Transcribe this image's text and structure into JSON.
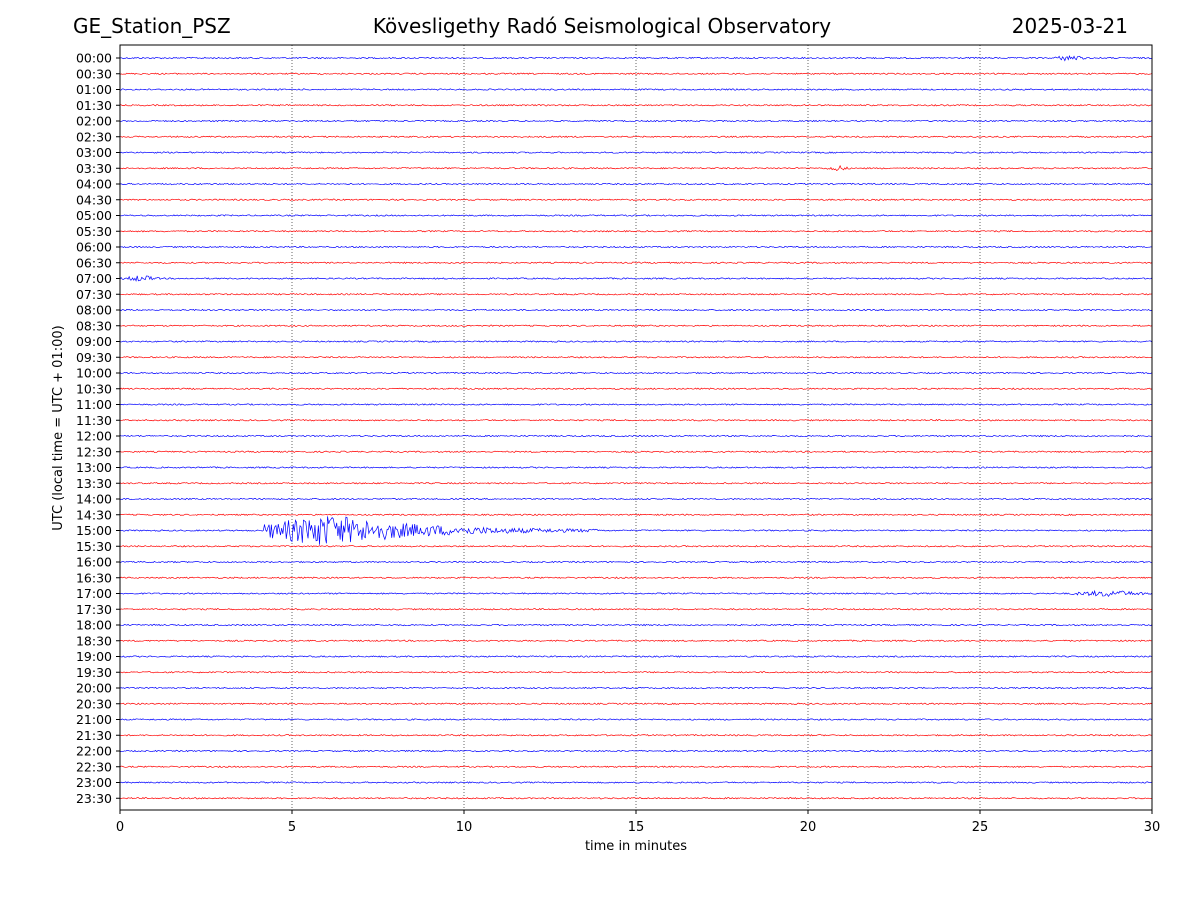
{
  "header": {
    "station": "GE_Station_PSZ",
    "observatory": "Kövesligethy Radó Seismological Observatory",
    "date": "2025-03-21"
  },
  "chart_data": {
    "type": "line",
    "title": "Kövesligethy Radó Seismological Observatory",
    "xlabel": "time in minutes",
    "ylabel": "UTC (local time = UTC + 01:00)",
    "xlim": [
      0,
      30
    ],
    "xticks": [
      0,
      5,
      10,
      15,
      20,
      25,
      30
    ],
    "grid": "vertical dotted lines at x ticks",
    "colors": {
      "even_rows": "#0000ff",
      "odd_rows": "#ff0000"
    },
    "rows": [
      "00:00",
      "00:30",
      "01:00",
      "01:30",
      "02:00",
      "02:30",
      "03:00",
      "03:30",
      "04:00",
      "04:30",
      "05:00",
      "05:30",
      "06:00",
      "06:30",
      "07:00",
      "07:30",
      "08:00",
      "08:30",
      "09:00",
      "09:30",
      "10:00",
      "10:30",
      "11:00",
      "11:30",
      "12:00",
      "12:30",
      "13:00",
      "13:30",
      "14:00",
      "14:30",
      "15:00",
      "15:30",
      "16:00",
      "16:30",
      "17:00",
      "17:30",
      "18:00",
      "18:30",
      "19:00",
      "19:30",
      "20:00",
      "20:30",
      "21:00",
      "21:30",
      "22:00",
      "22:30",
      "23:00",
      "23:30"
    ],
    "events": [
      {
        "row": "00:00",
        "x_start": 27.1,
        "x_end": 28.1,
        "strength": "small"
      },
      {
        "row": "03:30",
        "x_start": 20.5,
        "x_end": 21.2,
        "strength": "small"
      },
      {
        "row": "07:00",
        "x_start": 0.0,
        "x_end": 1.2,
        "strength": "small"
      },
      {
        "row": "15:00",
        "x_start": 4.2,
        "x_end": 14.0,
        "strength": "large",
        "peak_x": 6.0
      },
      {
        "row": "17:00",
        "x_start": 27.5,
        "x_end": 30.0,
        "strength": "small"
      }
    ]
  }
}
